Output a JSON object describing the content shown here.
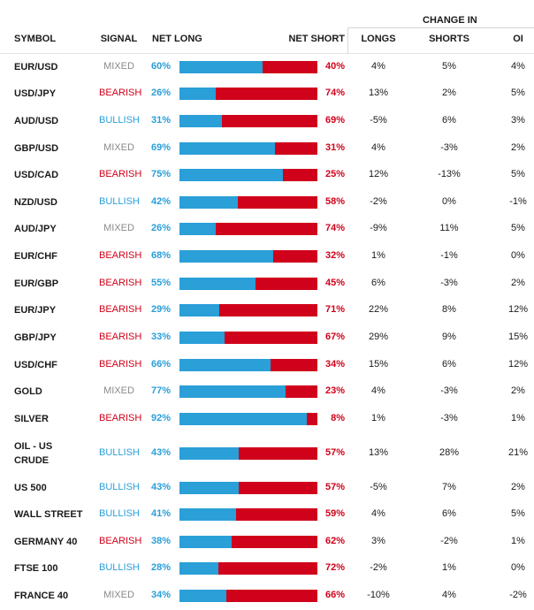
{
  "headers": {
    "symbol": "SYMBOL",
    "signal": "SIGNAL",
    "net_long": "NET LONG",
    "net_short": "NET SHORT",
    "change_in": "CHANGE IN",
    "longs": "LONGS",
    "shorts": "SHORTS",
    "oi": "OI"
  },
  "rows": [
    {
      "symbol": "EUR/USD",
      "signal": "MIXED",
      "net_long": "60%",
      "long_pct": 60,
      "net_short": "40%",
      "longs": "4%",
      "shorts": "5%",
      "oi": "4%"
    },
    {
      "symbol": "USD/JPY",
      "signal": "BEARISH",
      "net_long": "26%",
      "long_pct": 26,
      "net_short": "74%",
      "longs": "13%",
      "shorts": "2%",
      "oi": "5%"
    },
    {
      "symbol": "AUD/USD",
      "signal": "BULLISH",
      "net_long": "31%",
      "long_pct": 31,
      "net_short": "69%",
      "longs": "-5%",
      "shorts": "6%",
      "oi": "3%"
    },
    {
      "symbol": "GBP/USD",
      "signal": "MIXED",
      "net_long": "69%",
      "long_pct": 69,
      "net_short": "31%",
      "longs": "4%",
      "shorts": "-3%",
      "oi": "2%"
    },
    {
      "symbol": "USD/CAD",
      "signal": "BEARISH",
      "net_long": "75%",
      "long_pct": 75,
      "net_short": "25%",
      "longs": "12%",
      "shorts": "-13%",
      "oi": "5%"
    },
    {
      "symbol": "NZD/USD",
      "signal": "BULLISH",
      "net_long": "42%",
      "long_pct": 42,
      "net_short": "58%",
      "longs": "-2%",
      "shorts": "0%",
      "oi": "-1%"
    },
    {
      "symbol": "AUD/JPY",
      "signal": "MIXED",
      "net_long": "26%",
      "long_pct": 26,
      "net_short": "74%",
      "longs": "-9%",
      "shorts": "11%",
      "oi": "5%"
    },
    {
      "symbol": "EUR/CHF",
      "signal": "BEARISH",
      "net_long": "68%",
      "long_pct": 68,
      "net_short": "32%",
      "longs": "1%",
      "shorts": "-1%",
      "oi": "0%"
    },
    {
      "symbol": "EUR/GBP",
      "signal": "BEARISH",
      "net_long": "55%",
      "long_pct": 55,
      "net_short": "45%",
      "longs": "6%",
      "shorts": "-3%",
      "oi": "2%"
    },
    {
      "symbol": "EUR/JPY",
      "signal": "BEARISH",
      "net_long": "29%",
      "long_pct": 29,
      "net_short": "71%",
      "longs": "22%",
      "shorts": "8%",
      "oi": "12%"
    },
    {
      "symbol": "GBP/JPY",
      "signal": "BEARISH",
      "net_long": "33%",
      "long_pct": 33,
      "net_short": "67%",
      "longs": "29%",
      "shorts": "9%",
      "oi": "15%"
    },
    {
      "symbol": "USD/CHF",
      "signal": "BEARISH",
      "net_long": "66%",
      "long_pct": 66,
      "net_short": "34%",
      "longs": "15%",
      "shorts": "6%",
      "oi": "12%"
    },
    {
      "symbol": "GOLD",
      "signal": "MIXED",
      "net_long": "77%",
      "long_pct": 77,
      "net_short": "23%",
      "longs": "4%",
      "shorts": "-3%",
      "oi": "2%"
    },
    {
      "symbol": "SILVER",
      "signal": "BEARISH",
      "net_long": "92%",
      "long_pct": 92,
      "net_short": "8%",
      "longs": "1%",
      "shorts": "-3%",
      "oi": "1%"
    },
    {
      "symbol": "OIL - US CRUDE",
      "symbol_line1": "OIL - US",
      "symbol_line2": "CRUDE",
      "signal": "BULLISH",
      "net_long": "43%",
      "long_pct": 43,
      "net_short": "57%",
      "longs": "13%",
      "shorts": "28%",
      "oi": "21%"
    },
    {
      "symbol": "US 500",
      "signal": "BULLISH",
      "net_long": "43%",
      "long_pct": 43,
      "net_short": "57%",
      "longs": "-5%",
      "shorts": "7%",
      "oi": "2%"
    },
    {
      "symbol": "WALL STREET",
      "signal": "BULLISH",
      "net_long": "41%",
      "long_pct": 41,
      "net_short": "59%",
      "longs": "4%",
      "shorts": "6%",
      "oi": "5%"
    },
    {
      "symbol": "GERMANY 40",
      "signal": "BEARISH",
      "net_long": "38%",
      "long_pct": 38,
      "net_short": "62%",
      "longs": "3%",
      "shorts": "-2%",
      "oi": "1%"
    },
    {
      "symbol": "FTSE 100",
      "signal": "BULLISH",
      "net_long": "28%",
      "long_pct": 28,
      "net_short": "72%",
      "longs": "-2%",
      "shorts": "1%",
      "oi": "0%"
    },
    {
      "symbol": "FRANCE 40",
      "signal": "MIXED",
      "net_long": "34%",
      "long_pct": 34,
      "net_short": "66%",
      "longs": "-10%",
      "shorts": "4%",
      "oi": "-2%"
    }
  ],
  "colors": {
    "long": "#2a9fd8",
    "short": "#d0021b",
    "mixed": "#8a8a8a"
  }
}
